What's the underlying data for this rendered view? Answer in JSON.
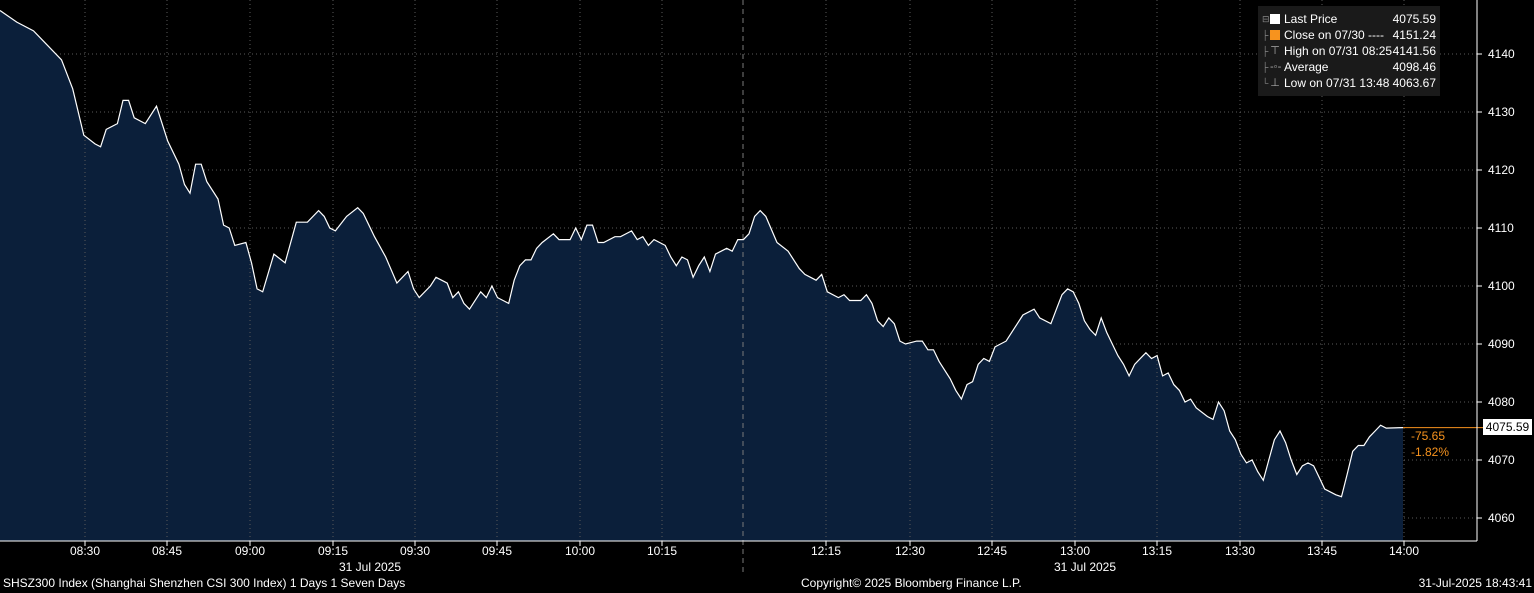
{
  "chart_data": {
    "type": "area",
    "title": "",
    "y_axis": {
      "ticks": [
        4060,
        4070,
        4080,
        4090,
        4100,
        4110,
        4120,
        4130,
        4140
      ],
      "side": "right"
    },
    "x_axis": {
      "ticks": [
        "08:30",
        "08:45",
        "09:00",
        "09:15",
        "09:30",
        "09:45",
        "10:00",
        "10:15",
        "12:15",
        "12:30",
        "12:45",
        "13:00",
        "13:15",
        "13:30",
        "13:45",
        "14:00"
      ],
      "date_labels": [
        "31 Jul 2025",
        "31 Jul 2025"
      ]
    },
    "grid": true,
    "series": [
      {
        "name": "Last Price",
        "points": [
          [
            0,
            4147.5
          ],
          [
            3,
            4145.5
          ],
          [
            6,
            4144.0
          ],
          [
            8,
            4142.0
          ],
          [
            11,
            4139.0
          ],
          [
            13,
            4134.0
          ],
          [
            15,
            4126.0
          ],
          [
            17,
            4124.5
          ],
          [
            18,
            4124.0
          ],
          [
            19,
            4127.0
          ],
          [
            21,
            4128.0
          ],
          [
            22,
            4132.0
          ],
          [
            23,
            4132.0
          ],
          [
            24,
            4129.0
          ],
          [
            26,
            4128.0
          ],
          [
            28,
            4131.0
          ],
          [
            30,
            4125.0
          ],
          [
            32,
            4121.0
          ],
          [
            33,
            4117.5
          ],
          [
            34,
            4116.0
          ],
          [
            35,
            4121.0
          ],
          [
            36,
            4121.0
          ],
          [
            37,
            4118.0
          ],
          [
            39,
            4115.0
          ],
          [
            40,
            4110.5
          ],
          [
            41,
            4110.0
          ],
          [
            42,
            4107.0
          ],
          [
            44,
            4107.5
          ],
          [
            45,
            4104.0
          ],
          [
            46,
            4099.5
          ],
          [
            47,
            4099.0
          ],
          [
            49,
            4105.5
          ],
          [
            51,
            4104.0
          ],
          [
            53,
            4111.0
          ],
          [
            55,
            4111.0
          ],
          [
            57,
            4113.0
          ],
          [
            58,
            4112.0
          ],
          [
            59,
            4110.0
          ],
          [
            60,
            4109.5
          ],
          [
            62,
            4112.0
          ],
          [
            64,
            4113.5
          ],
          [
            65,
            4112.5
          ],
          [
            67,
            4108.5
          ],
          [
            69,
            4105.0
          ],
          [
            71,
            4100.5
          ],
          [
            73,
            4102.5
          ],
          [
            74,
            4099.5
          ],
          [
            75,
            4098.0
          ],
          [
            77,
            4100.0
          ],
          [
            78,
            4101.5
          ],
          [
            80,
            4100.5
          ],
          [
            81,
            4098.0
          ],
          [
            82,
            4099.0
          ],
          [
            83,
            4097.0
          ],
          [
            84,
            4096.0
          ],
          [
            86,
            4099.0
          ],
          [
            87,
            4098.0
          ],
          [
            88,
            4100.0
          ],
          [
            89,
            4098.0
          ],
          [
            90,
            4097.5
          ],
          [
            91,
            4097.0
          ],
          [
            92,
            4101.0
          ],
          [
            93,
            4103.5
          ],
          [
            94,
            4104.5
          ],
          [
            95,
            4104.5
          ],
          [
            96,
            4106.5
          ],
          [
            97,
            4107.5
          ],
          [
            99,
            4109.0
          ],
          [
            100,
            4108.0
          ],
          [
            102,
            4108.0
          ],
          [
            103,
            4110.0
          ],
          [
            104,
            4108.0
          ],
          [
            105,
            4110.5
          ],
          [
            106,
            4110.5
          ],
          [
            107,
            4107.5
          ],
          [
            108,
            4107.5
          ],
          [
            110,
            4108.5
          ],
          [
            111,
            4108.5
          ],
          [
            113,
            4109.5
          ],
          [
            114,
            4108.0
          ],
          [
            115,
            4108.5
          ],
          [
            116,
            4107.0
          ],
          [
            117,
            4108.0
          ],
          [
            119,
            4107.0
          ],
          [
            120,
            4105.0
          ],
          [
            121,
            4103.5
          ],
          [
            122,
            4105.0
          ],
          [
            123,
            4104.5
          ],
          [
            124,
            4101.5
          ],
          [
            125,
            4103.5
          ],
          [
            126,
            4105.0
          ],
          [
            127,
            4102.5
          ],
          [
            128,
            4105.5
          ],
          [
            130,
            4106.5
          ],
          [
            131,
            4106.0
          ],
          [
            132,
            4108.0
          ],
          [
            133,
            4108.0
          ],
          [
            134,
            4109.0
          ],
          [
            135,
            4112.0
          ],
          [
            136,
            4113.0
          ],
          [
            137,
            4112.0
          ],
          [
            139,
            4107.5
          ],
          [
            141,
            4106.0
          ],
          [
            143,
            4103.0
          ],
          [
            144,
            4102.0
          ],
          [
            146,
            4101.0
          ],
          [
            147,
            4102.0
          ],
          [
            148,
            4099.0
          ],
          [
            150,
            4098.0
          ],
          [
            151,
            4098.5
          ],
          [
            152,
            4097.5
          ],
          [
            154,
            4097.5
          ],
          [
            155,
            4098.5
          ],
          [
            156,
            4097.0
          ],
          [
            157,
            4094.0
          ],
          [
            158,
            4093.0
          ],
          [
            159,
            4094.5
          ],
          [
            160,
            4093.5
          ],
          [
            161,
            4090.5
          ],
          [
            162,
            4090.0
          ],
          [
            164,
            4090.5
          ],
          [
            165,
            4090.5
          ],
          [
            166,
            4089.0
          ],
          [
            167,
            4089.0
          ],
          [
            168,
            4087.0
          ],
          [
            170,
            4084.0
          ],
          [
            171,
            4082.0
          ],
          [
            172,
            4080.5
          ],
          [
            173,
            4083.0
          ],
          [
            174,
            4083.5
          ],
          [
            175,
            4086.5
          ],
          [
            176,
            4087.5
          ],
          [
            177,
            4087.0
          ],
          [
            178,
            4089.5
          ],
          [
            179,
            4090.0
          ],
          [
            180,
            4090.5
          ],
          [
            182,
            4093.5
          ],
          [
            183,
            4095.0
          ],
          [
            185,
            4096.0
          ],
          [
            186,
            4094.5
          ],
          [
            188,
            4093.5
          ],
          [
            189,
            4096.0
          ],
          [
            190,
            4098.5
          ],
          [
            191,
            4099.5
          ],
          [
            192,
            4099.0
          ],
          [
            193,
            4097.0
          ],
          [
            194,
            4094.0
          ],
          [
            195,
            4092.5
          ],
          [
            196,
            4091.5
          ],
          [
            197,
            4094.5
          ],
          [
            198,
            4092.0
          ],
          [
            200,
            4088.0
          ],
          [
            201,
            4086.5
          ],
          [
            202,
            4084.5
          ],
          [
            203,
            4086.5
          ],
          [
            205,
            4088.5
          ],
          [
            206,
            4087.5
          ],
          [
            207,
            4088.0
          ],
          [
            208,
            4084.5
          ],
          [
            209,
            4085.0
          ],
          [
            210,
            4083.0
          ],
          [
            211,
            4082.0
          ],
          [
            212,
            4080.0
          ],
          [
            213,
            4080.5
          ],
          [
            214,
            4079.0
          ],
          [
            216,
            4077.5
          ],
          [
            217,
            4077.0
          ],
          [
            218,
            4080.0
          ],
          [
            219,
            4078.5
          ],
          [
            220,
            4075.0
          ],
          [
            221,
            4073.5
          ],
          [
            222,
            4071.0
          ],
          [
            223,
            4069.5
          ],
          [
            224,
            4070.0
          ],
          [
            225,
            4068.0
          ],
          [
            226,
            4066.5
          ],
          [
            227,
            4070.0
          ],
          [
            228,
            4073.5
          ],
          [
            229,
            4075.0
          ],
          [
            230,
            4073.0
          ],
          [
            231,
            4070.0
          ],
          [
            232,
            4067.5
          ],
          [
            233,
            4069.0
          ],
          [
            234,
            4069.5
          ],
          [
            235,
            4069.0
          ],
          [
            236,
            4067.0
          ],
          [
            237,
            4065.0
          ],
          [
            239,
            4064.0
          ],
          [
            240,
            4063.67
          ],
          [
            241,
            4067.5
          ],
          [
            242,
            4071.5
          ],
          [
            243,
            4072.5
          ],
          [
            244,
            4072.5
          ],
          [
            245,
            4074.0
          ],
          [
            246,
            4075.0
          ],
          [
            247,
            4076.0
          ],
          [
            248,
            4075.5
          ],
          [
            251,
            4075.59
          ]
        ]
      }
    ],
    "legend": {
      "placement": "top-right",
      "entries": [
        {
          "label": "Last Price",
          "value": "4075.59"
        },
        {
          "label": "Close on 07/30 ----",
          "value": "4151.24"
        },
        {
          "label": "High on 07/31 08:25",
          "value": "4141.56"
        },
        {
          "label": "Average",
          "value": "4098.46"
        },
        {
          "label": "Low on 07/31 13:48",
          "value": "4063.67"
        }
      ]
    },
    "last_price_tag": "4075.59",
    "change_abs": "-75.65",
    "change_pct": "-1.82%"
  },
  "footer": {
    "left": "SHSZ300 Index (Shanghai Shenzhen CSI 300 Index) 1 Days 1 Seven Days",
    "center": "Copyright© 2025 Bloomberg Finance L.P.",
    "right": "31-Jul-2025 18:43:41"
  },
  "colors": {
    "background": "#000000",
    "area_fill": "#0b1f3a",
    "line": "#ffffff",
    "grid": "#5a5a5a",
    "close_marker": "#f7931e",
    "change_text": "#f7931e"
  }
}
